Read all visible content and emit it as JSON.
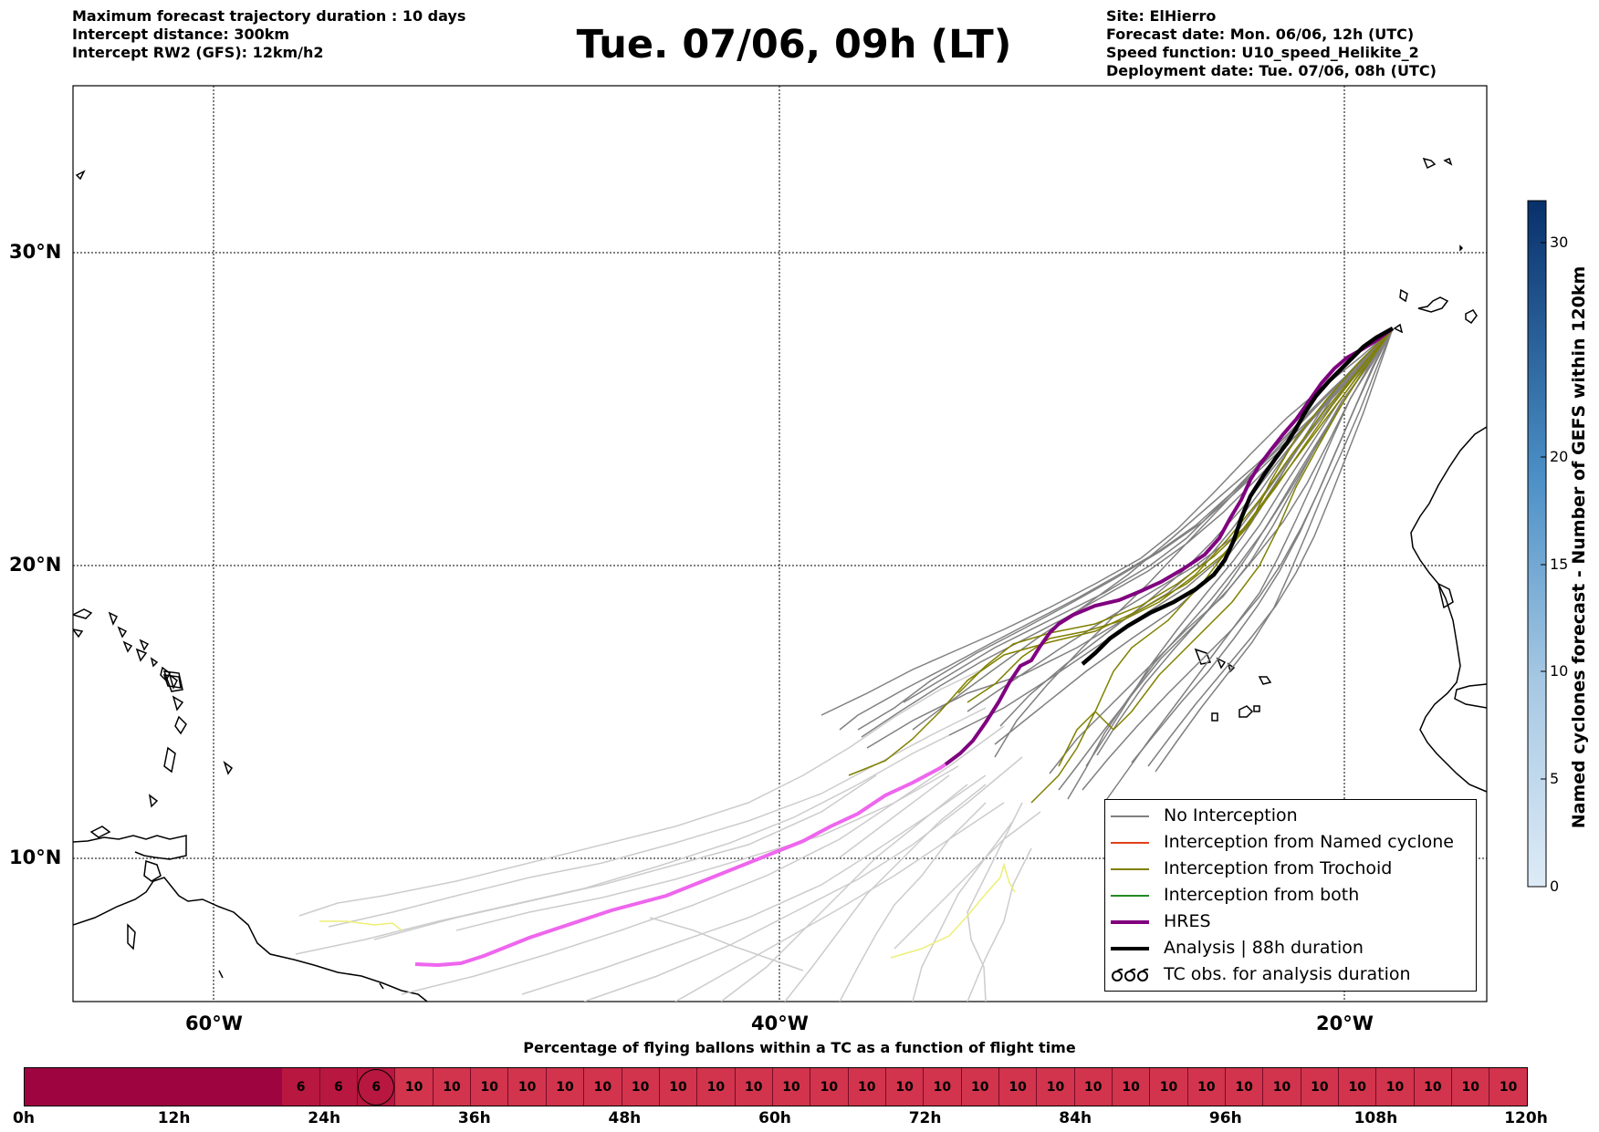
{
  "header_left": [
    "Maximum forecast trajectory duration : 10 days",
    "Intercept distance: 300km",
    "Intercept RW2 (GFS):  12km/h2"
  ],
  "title": "Tue. 07/06, 09h (LT)",
  "header_right": [
    "Site: ElHierro",
    "Forecast date: Mon. 06/06, 12h (UTC)",
    "Speed function: U10_speed_Helikite_2",
    "Deployment date: Tue. 07/06, 08h (UTC)"
  ],
  "map": {
    "lat_labels": [
      "30°N",
      "20°N",
      "10°N"
    ],
    "lon_labels": [
      "60°W",
      "40°W",
      "20°W"
    ],
    "colors": {
      "no_interception": "#808080",
      "light_ensemble": "#cccccc",
      "named_cyclone": "#e0401a",
      "trochoid": "#808000",
      "both": "#228b22",
      "hres": "#800080",
      "hres_late": "#ee66ee",
      "analysis": "#000000",
      "yellow": "#eeee77"
    }
  },
  "legend": {
    "items": [
      {
        "label": "No Interception",
        "color": "#808080"
      },
      {
        "label": "Interception from Named cyclone",
        "color": "#e0401a"
      },
      {
        "label": "Interception from Trochoid",
        "color": "#808000"
      },
      {
        "label": "Interception from both",
        "color": "#228b22"
      },
      {
        "label": "HRES",
        "color": "#800080"
      },
      {
        "label": "Analysis | 88h duration",
        "color": "#000000"
      },
      {
        "label": "TC obs. for analysis duration",
        "color": "#000000",
        "icon": "tc-symbol-icon"
      }
    ]
  },
  "colorbar": {
    "label": "Named cyclones forecast - Number of GEFS within 120km",
    "ticks": [
      "30",
      "20",
      "15",
      "10",
      "5",
      "0"
    ],
    "tick_values": [
      30,
      20,
      15,
      10,
      5,
      0
    ],
    "max": 32
  },
  "timebar": {
    "title": "Percentage of flying ballons within a TC as a function of flight time",
    "tick_labels": [
      "0h",
      "12h",
      "24h",
      "36h",
      "48h",
      "60h",
      "72h",
      "84h",
      "96h",
      "108h",
      "120h"
    ],
    "cells": [
      "",
      "",
      "",
      "",
      "",
      "",
      "",
      "6",
      "6",
      "6",
      "10",
      "10",
      "10",
      "10",
      "10",
      "10",
      "10",
      "10",
      "10",
      "10",
      "10",
      "10",
      "10",
      "10",
      "10",
      "10",
      "10",
      "10",
      "10",
      "10",
      "10",
      "10",
      "10",
      "10",
      "10",
      "10",
      "10",
      "10",
      "10",
      "10"
    ],
    "circled_index": 9,
    "color_dark": "#9e0440",
    "color_med": "#b8173f",
    "color_light": "#d1344c"
  }
}
